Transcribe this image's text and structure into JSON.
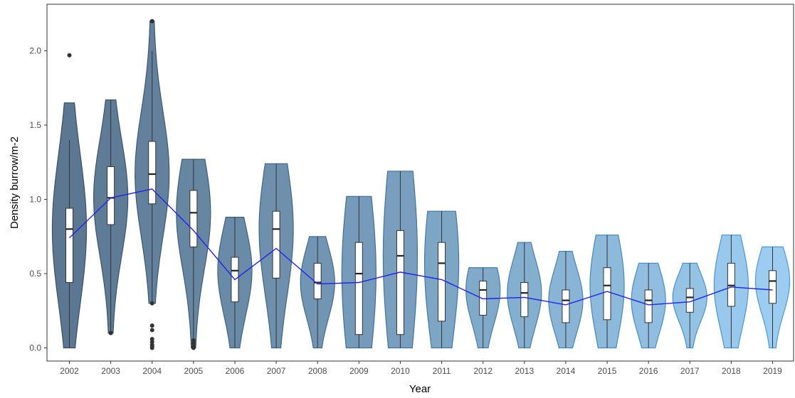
{
  "chart_data": {
    "type": "violin",
    "title": "",
    "xlabel": "Year",
    "ylabel": "Density burrow/m-2",
    "ylim": [
      -0.1,
      2.25
    ],
    "yticks": [
      "0.0",
      "0.5",
      "1.0",
      "1.5",
      "2.0"
    ],
    "grid": false,
    "legend": "none",
    "colors": {
      "line": "#2222ee",
      "violin_dark": "#5b7791",
      "violin_light": "#9ccdf1",
      "outline_dark": "#3a4f66",
      "outline_light": "#4a9bd8",
      "box_fill": "#ffffff",
      "box_stroke": "#333333",
      "axis": "#333333"
    },
    "categories": [
      "2002",
      "2003",
      "2004",
      "2005",
      "2006",
      "2007",
      "2008",
      "2009",
      "2010",
      "2011",
      "2012",
      "2013",
      "2014",
      "2015",
      "2016",
      "2017",
      "2018",
      "2019"
    ],
    "boxes": [
      {
        "min": 0.0,
        "q1": 0.44,
        "median": 0.8,
        "q3": 0.94,
        "max": 1.4,
        "vmax": 1.65
      },
      {
        "min": 0.1,
        "q1": 0.83,
        "median": 1.01,
        "q3": 1.22,
        "max": 1.67,
        "vmax": 1.67
      },
      {
        "min": 0.3,
        "q1": 0.97,
        "median": 1.17,
        "q3": 1.39,
        "max": 2.0,
        "vmax": 2.2
      },
      {
        "min": 0.0,
        "q1": 0.68,
        "median": 0.91,
        "q3": 1.06,
        "max": 1.27,
        "vmax": 1.27
      },
      {
        "min": 0.0,
        "q1": 0.31,
        "median": 0.52,
        "q3": 0.61,
        "max": 0.88,
        "vmax": 0.88
      },
      {
        "min": 0.0,
        "q1": 0.47,
        "median": 0.8,
        "q3": 0.92,
        "max": 1.24,
        "vmax": 1.24
      },
      {
        "min": 0.0,
        "q1": 0.33,
        "median": 0.44,
        "q3": 0.57,
        "max": 0.75,
        "vmax": 0.75
      },
      {
        "min": 0.0,
        "q1": 0.09,
        "median": 0.5,
        "q3": 0.71,
        "max": 1.02,
        "vmax": 1.02
      },
      {
        "min": 0.0,
        "q1": 0.09,
        "median": 0.62,
        "q3": 0.79,
        "max": 1.19,
        "vmax": 1.19
      },
      {
        "min": 0.0,
        "q1": 0.18,
        "median": 0.57,
        "q3": 0.71,
        "max": 0.92,
        "vmax": 0.92
      },
      {
        "min": 0.0,
        "q1": 0.22,
        "median": 0.39,
        "q3": 0.45,
        "max": 0.54,
        "vmax": 0.54
      },
      {
        "min": 0.0,
        "q1": 0.21,
        "median": 0.37,
        "q3": 0.44,
        "max": 0.71,
        "vmax": 0.71
      },
      {
        "min": 0.0,
        "q1": 0.17,
        "median": 0.32,
        "q3": 0.39,
        "max": 0.65,
        "vmax": 0.65
      },
      {
        "min": 0.0,
        "q1": 0.19,
        "median": 0.42,
        "q3": 0.54,
        "max": 0.76,
        "vmax": 0.76
      },
      {
        "min": 0.0,
        "q1": 0.17,
        "median": 0.32,
        "q3": 0.39,
        "max": 0.57,
        "vmax": 0.57
      },
      {
        "min": 0.0,
        "q1": 0.24,
        "median": 0.34,
        "q3": 0.4,
        "max": 0.57,
        "vmax": 0.57
      },
      {
        "min": 0.0,
        "q1": 0.28,
        "median": 0.42,
        "q3": 0.57,
        "max": 0.76,
        "vmax": 0.76
      },
      {
        "min": 0.0,
        "q1": 0.3,
        "median": 0.45,
        "q3": 0.52,
        "max": 0.68,
        "vmax": 0.68
      }
    ],
    "outliers": [
      {
        "year": "2002",
        "values": [
          1.97
        ]
      },
      {
        "year": "2003",
        "values": [
          0.1
        ]
      },
      {
        "year": "2004",
        "values": [
          2.2,
          0.3,
          0.15,
          0.12,
          0.06,
          0.04,
          0.02,
          0.01,
          0.0
        ]
      },
      {
        "year": "2005",
        "values": [
          0.05,
          0.03,
          0.01,
          0.0
        ]
      }
    ],
    "mean_line": {
      "x": [
        "2002",
        "2003",
        "2004",
        "2005",
        "2006",
        "2007",
        "2008",
        "2009",
        "2010",
        "2011",
        "2012",
        "2013",
        "2014",
        "2015",
        "2016",
        "2017",
        "2018",
        "2019"
      ],
      "values": [
        0.74,
        1.01,
        1.07,
        0.79,
        0.46,
        0.67,
        0.43,
        0.44,
        0.51,
        0.46,
        0.33,
        0.34,
        0.29,
        0.38,
        0.29,
        0.31,
        0.41,
        0.39
      ]
    }
  }
}
